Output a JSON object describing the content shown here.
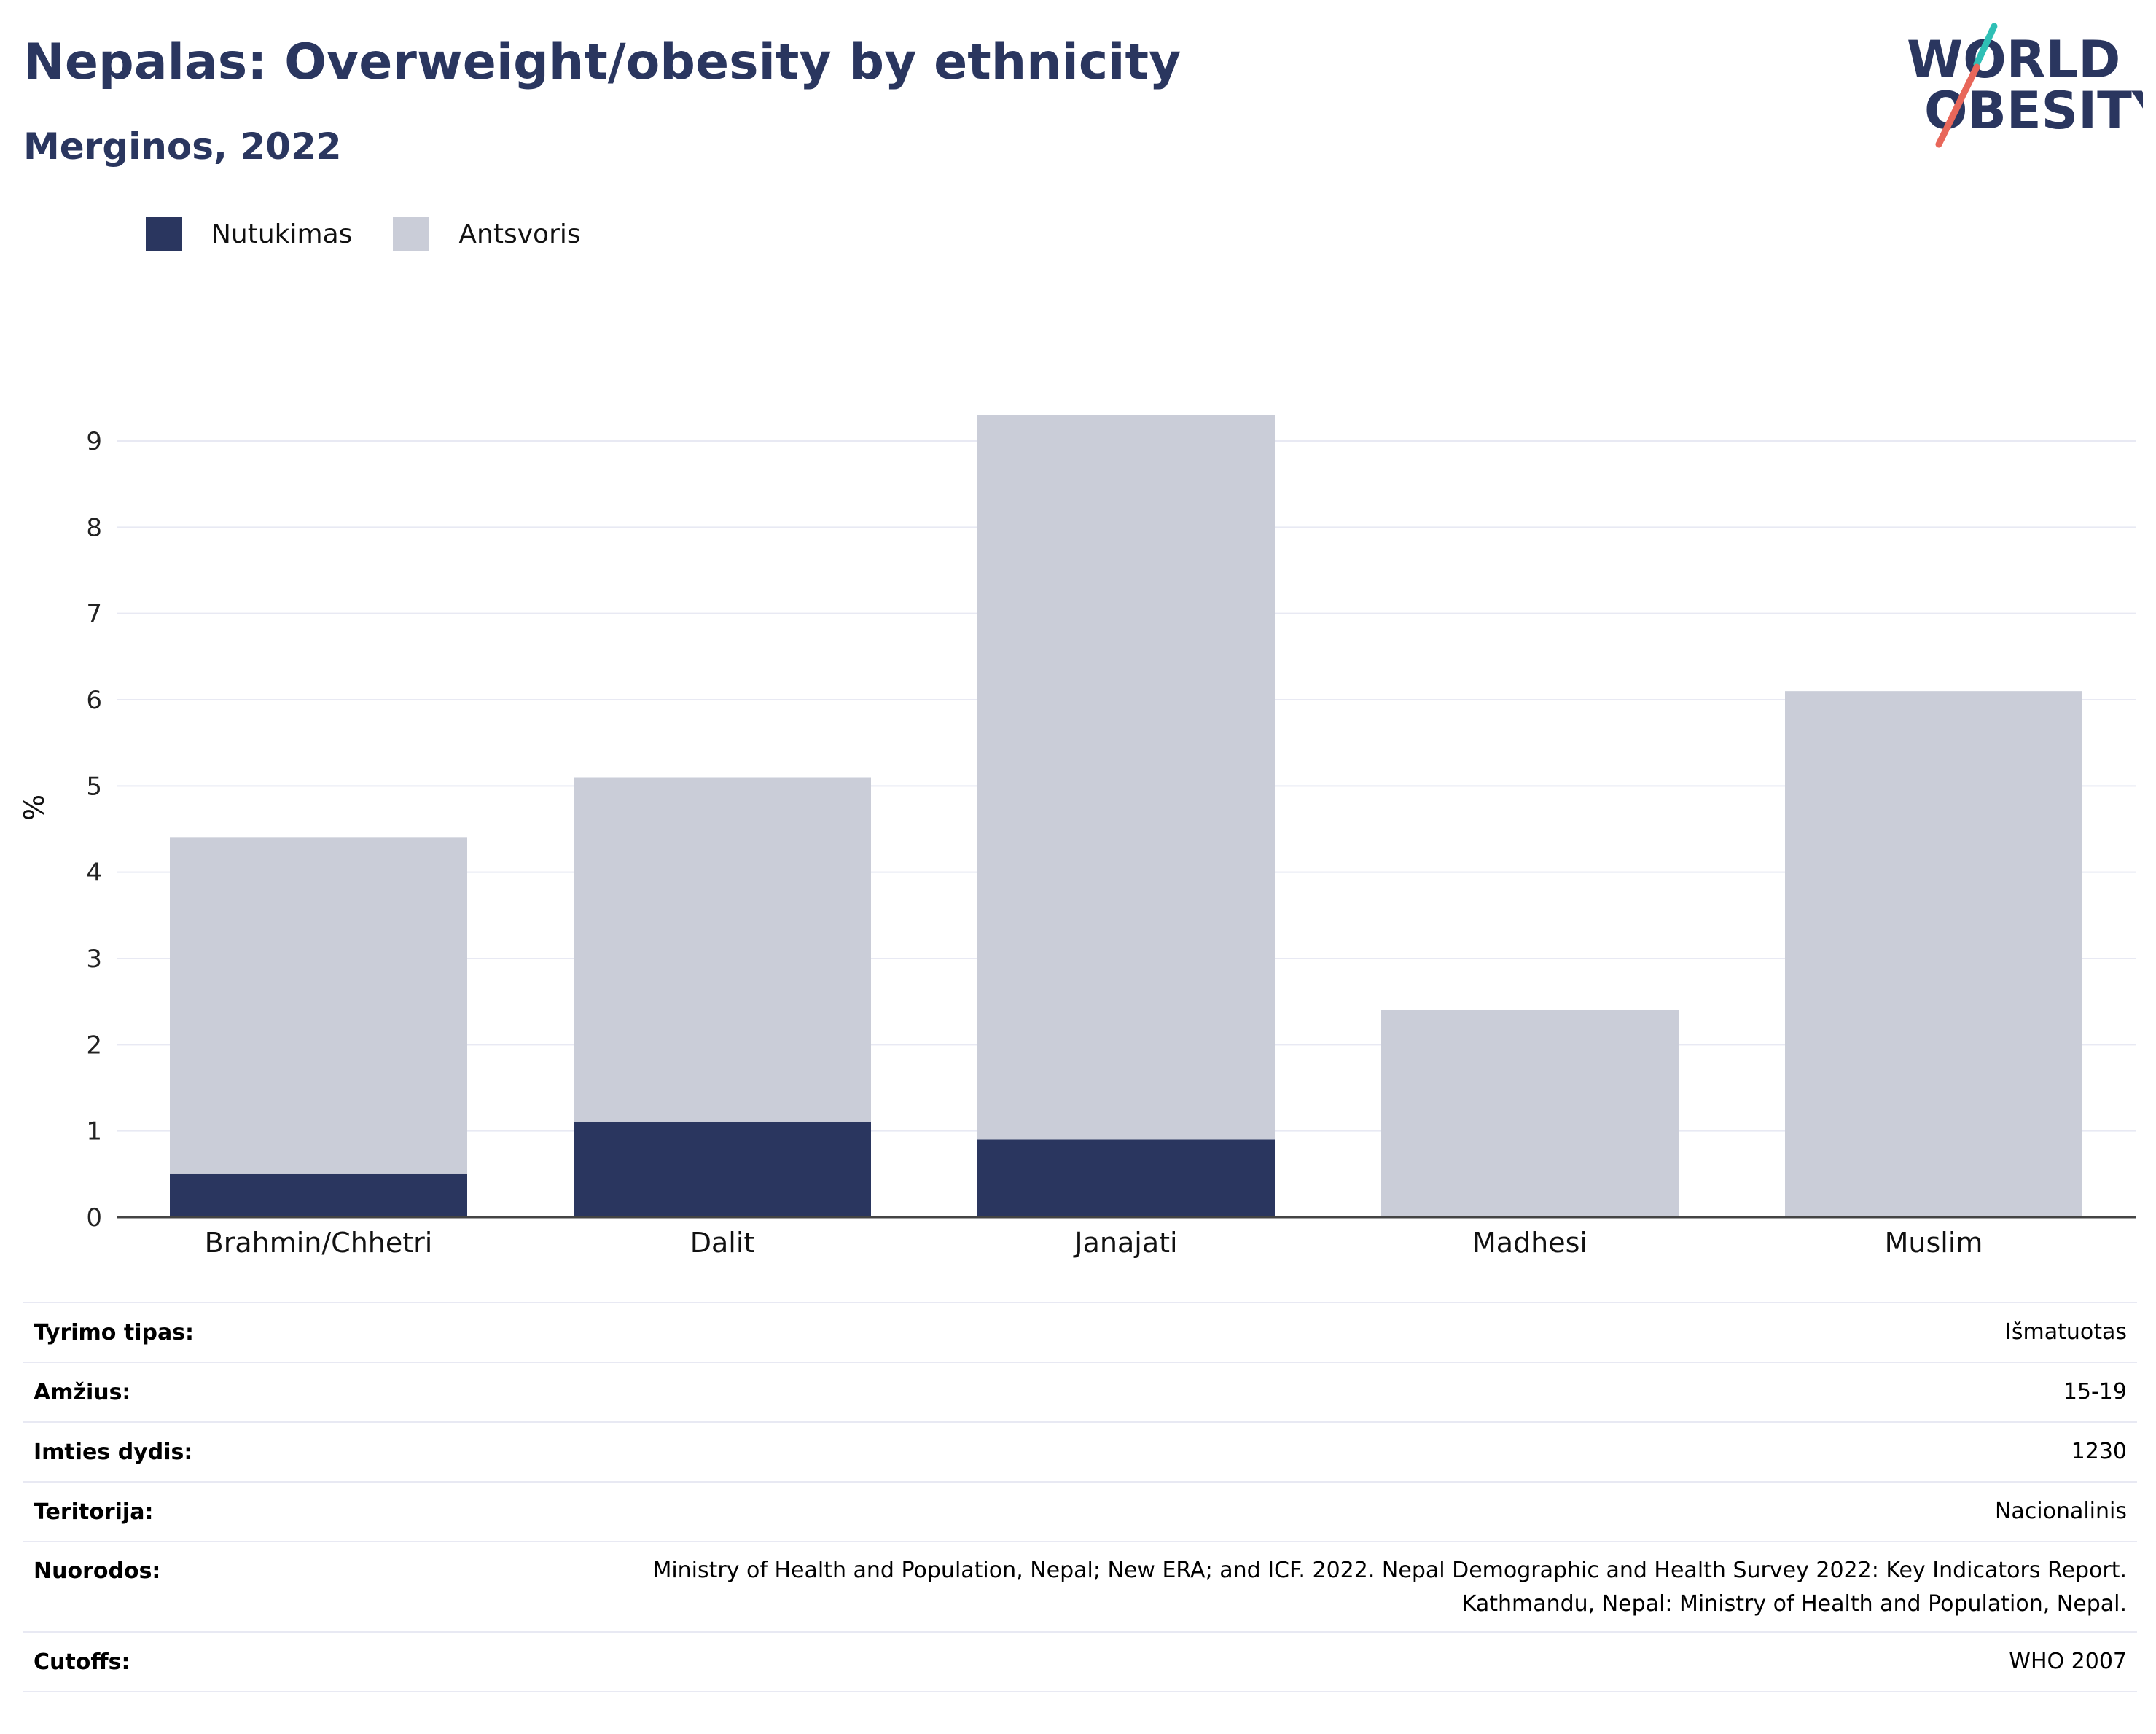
{
  "header": {
    "title": "Nepalas: Overweight/obesity by ethnicity",
    "subtitle": "Merginos, 2022"
  },
  "logo": {
    "line1": "WORLD",
    "line2": "OBESITY"
  },
  "colors": {
    "obesity": "#2a365f",
    "overweight": "#cacdd8",
    "title": "#2a365f",
    "logo_teal": "#2fbfb5",
    "logo_red": "#e8675a"
  },
  "legend": {
    "obesity_label": "Nutukimas",
    "overweight_label": "Antsvoris"
  },
  "chart_data": {
    "type": "bar",
    "stacked": true,
    "categories": [
      "Brahmin/Chhetri",
      "Dalit",
      "Janajati",
      "Madhesi",
      "Muslim"
    ],
    "series": [
      {
        "name": "Nutukimas",
        "values": [
          0.5,
          1.1,
          0.9,
          0,
          0
        ]
      },
      {
        "name": "Antsvoris",
        "values": [
          3.9,
          4.0,
          8.4,
          2.4,
          6.1
        ]
      }
    ],
    "ylabel": "%",
    "ylim": [
      0,
      9.5
    ],
    "yticks": [
      0,
      1,
      2,
      3,
      4,
      5,
      6,
      7,
      8,
      9
    ],
    "grid": true
  },
  "info": {
    "survey_type_label": "Tyrimo tipas:",
    "survey_type_value": "Išmatuotas",
    "age_label": "Amžius:",
    "age_value": "15-19",
    "sample_label": "Imties dydis:",
    "sample_value": "1230",
    "territory_label": "Teritorija:",
    "territory_value": "Nacionalinis",
    "refs_label": "Nuorodos:",
    "refs_line1": "Ministry of Health and Population, Nepal; New ERA; and ICF. 2022. Nepal Demographic and Health Survey 2022: Key Indicators Report.",
    "refs_line2": "Kathmandu, Nepal: Ministry of Health and Population, Nepal.",
    "cutoffs_label": "Cutoffs:",
    "cutoffs_value": "WHO 2007"
  }
}
